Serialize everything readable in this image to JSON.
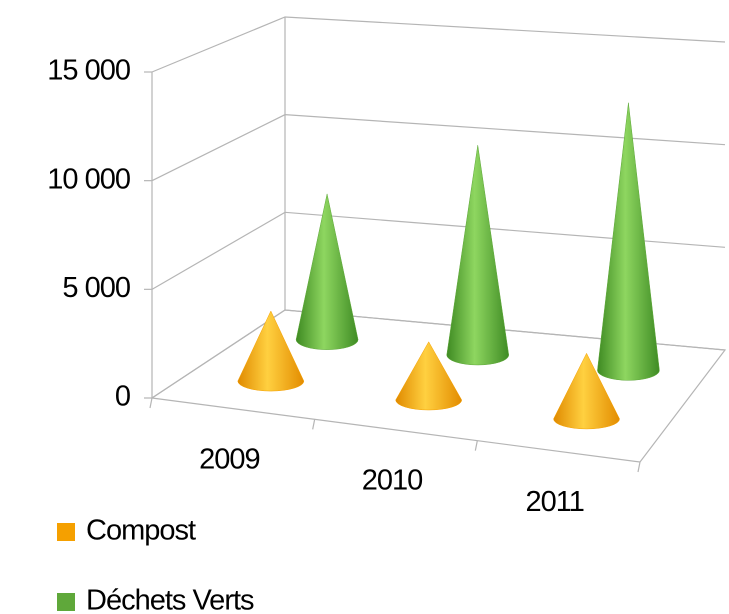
{
  "chart_data": {
    "type": "cone3d",
    "categories": [
      "2009",
      "2010",
      "2011"
    ],
    "series": [
      {
        "name": "Compost",
        "color": "#f5a000",
        "values": [
          3300,
          2700,
          3000
        ]
      },
      {
        "name": "Déchets Verts",
        "color": "#5fa83a",
        "values": [
          7200,
          10200,
          12800
        ]
      }
    ],
    "ylim": [
      0,
      15000
    ],
    "yticks": [
      {
        "value": 0,
        "label": "0"
      },
      {
        "value": 5000,
        "label": "5 000"
      },
      {
        "value": 10000,
        "label": "10 000"
      },
      {
        "value": 15000,
        "label": "15 000"
      }
    ],
    "grid": true
  }
}
